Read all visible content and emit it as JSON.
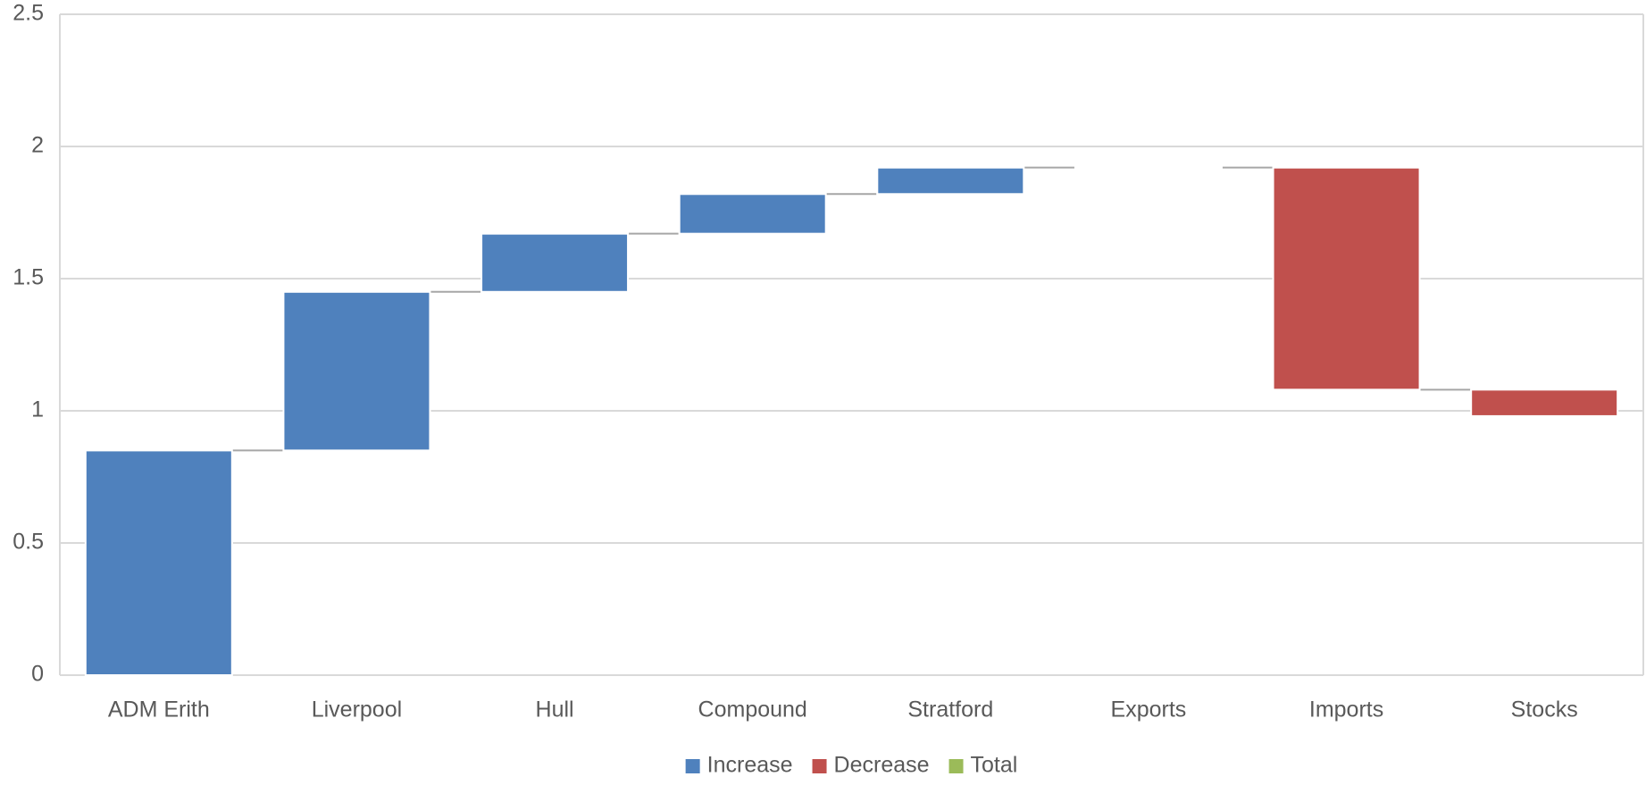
{
  "chart_data": {
    "type": "waterfall",
    "categories": [
      "ADM Erith",
      "Liverpool",
      "Hull",
      "Compound",
      "Stratford",
      "Exports",
      "Imports",
      "Stocks"
    ],
    "values": [
      0.85,
      0.6,
      0.22,
      0.15,
      0.1,
      0,
      -0.84,
      -0.1
    ],
    "legend": [
      {
        "name": "Increase",
        "color": "#4f81bd"
      },
      {
        "name": "Decrease",
        "color": "#c0504d"
      },
      {
        "name": "Total",
        "color": "#9bbb59"
      }
    ],
    "ylim": [
      0,
      2.5
    ],
    "yticks": [
      0,
      0.5,
      1,
      1.5,
      2,
      2.5
    ],
    "grid": true
  }
}
